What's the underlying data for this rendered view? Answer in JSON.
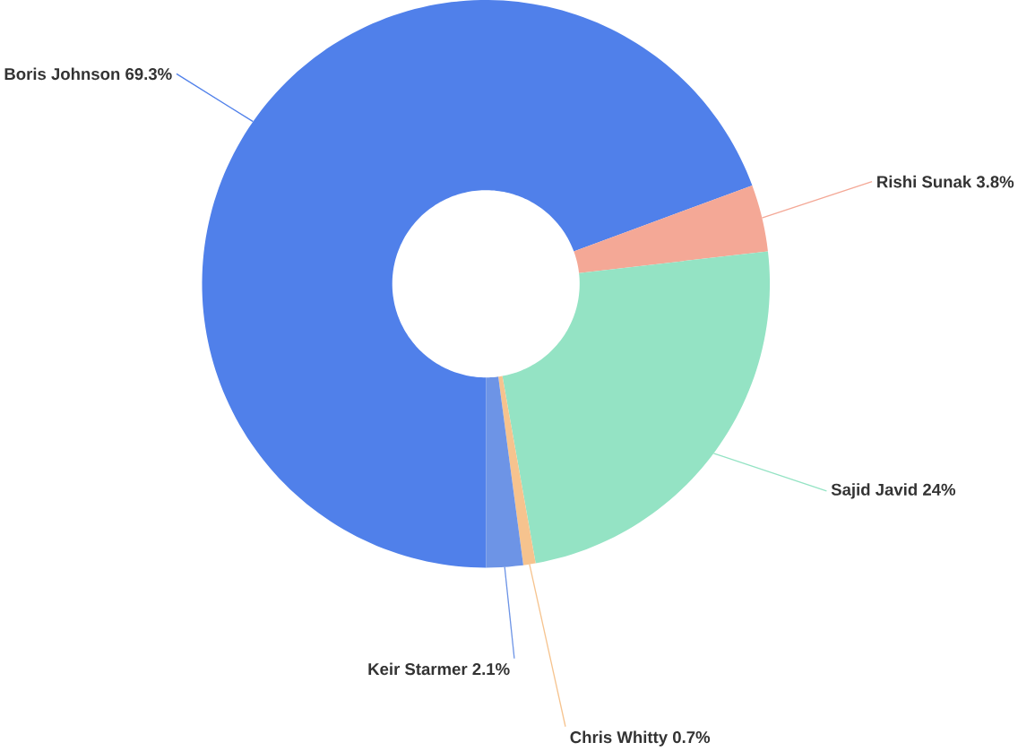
{
  "chart_data": {
    "type": "donut",
    "categories": [
      "Boris Johnson",
      "Rishi Sunak",
      "Sajid Javid",
      "Chris Whitty",
      "Keir Starmer"
    ],
    "values": [
      69.3,
      3.8,
      24,
      0.7,
      2.1
    ],
    "colors": [
      "#5080ea",
      "#f4a896",
      "#94e3c4",
      "#f6c38e",
      "#6d94e6"
    ],
    "value_labels": [
      "69.3%",
      "3.8%",
      "24%",
      "0.7%",
      "2.1%"
    ]
  }
}
